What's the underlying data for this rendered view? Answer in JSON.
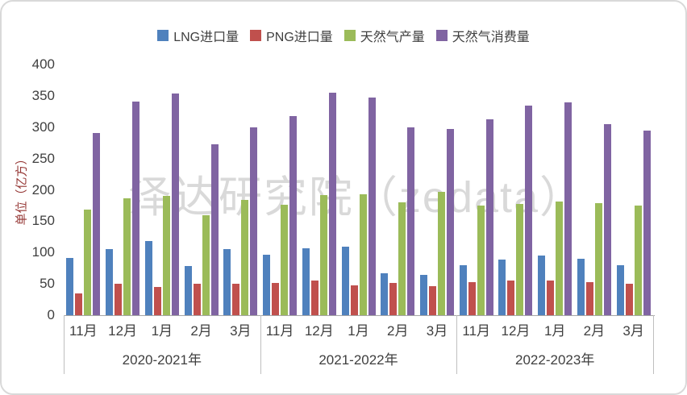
{
  "chart_data": {
    "type": "bar",
    "y_axis_title": "单位（亿方）",
    "watermark": "泽达研究院（zedata）",
    "y_min": 0,
    "y_max": 400,
    "y_step": 50,
    "y_ticks": [
      0,
      50,
      100,
      150,
      200,
      250,
      300,
      350,
      400
    ],
    "group_labels": [
      "2020-2021年",
      "2021-2022年",
      "2022-2023年"
    ],
    "month_labels": [
      "11月",
      "12月",
      "1月",
      "2月",
      "3月"
    ],
    "legend_position": "top",
    "grid": false,
    "series": [
      {
        "name": "LNG进口量",
        "color": "#4F81BD",
        "values": [
          [
            92,
            105,
            118,
            78,
            105
          ],
          [
            97,
            107,
            110,
            67,
            65
          ],
          [
            80,
            89,
            95,
            90,
            80
          ]
        ]
      },
      {
        "name": "PNG进口量",
        "color": "#C0504D",
        "values": [
          [
            35,
            50,
            45,
            50,
            50
          ],
          [
            52,
            55,
            48,
            52,
            47
          ],
          [
            53,
            56,
            55,
            53,
            50
          ]
        ]
      },
      {
        "name": "天然气产量",
        "color": "#9BBB59",
        "values": [
          [
            168,
            187,
            190,
            160,
            184
          ],
          [
            176,
            192,
            193,
            180,
            197
          ],
          [
            175,
            178,
            182,
            179,
            175
          ]
        ]
      },
      {
        "name": "天然气消费量",
        "color": "#8064A2",
        "values": [
          [
            291,
            341,
            354,
            273,
            300
          ],
          [
            318,
            355,
            347,
            300,
            297
          ],
          [
            312,
            334,
            340,
            305,
            294
          ]
        ]
      }
    ]
  },
  "theme": {
    "text_color": "#3f3f3f",
    "axis_title_color": "#953735",
    "watermark_color": "#d9d9d9",
    "axis_line_color": "#a6a6a6",
    "card_border_color": "#d9d9d9"
  }
}
